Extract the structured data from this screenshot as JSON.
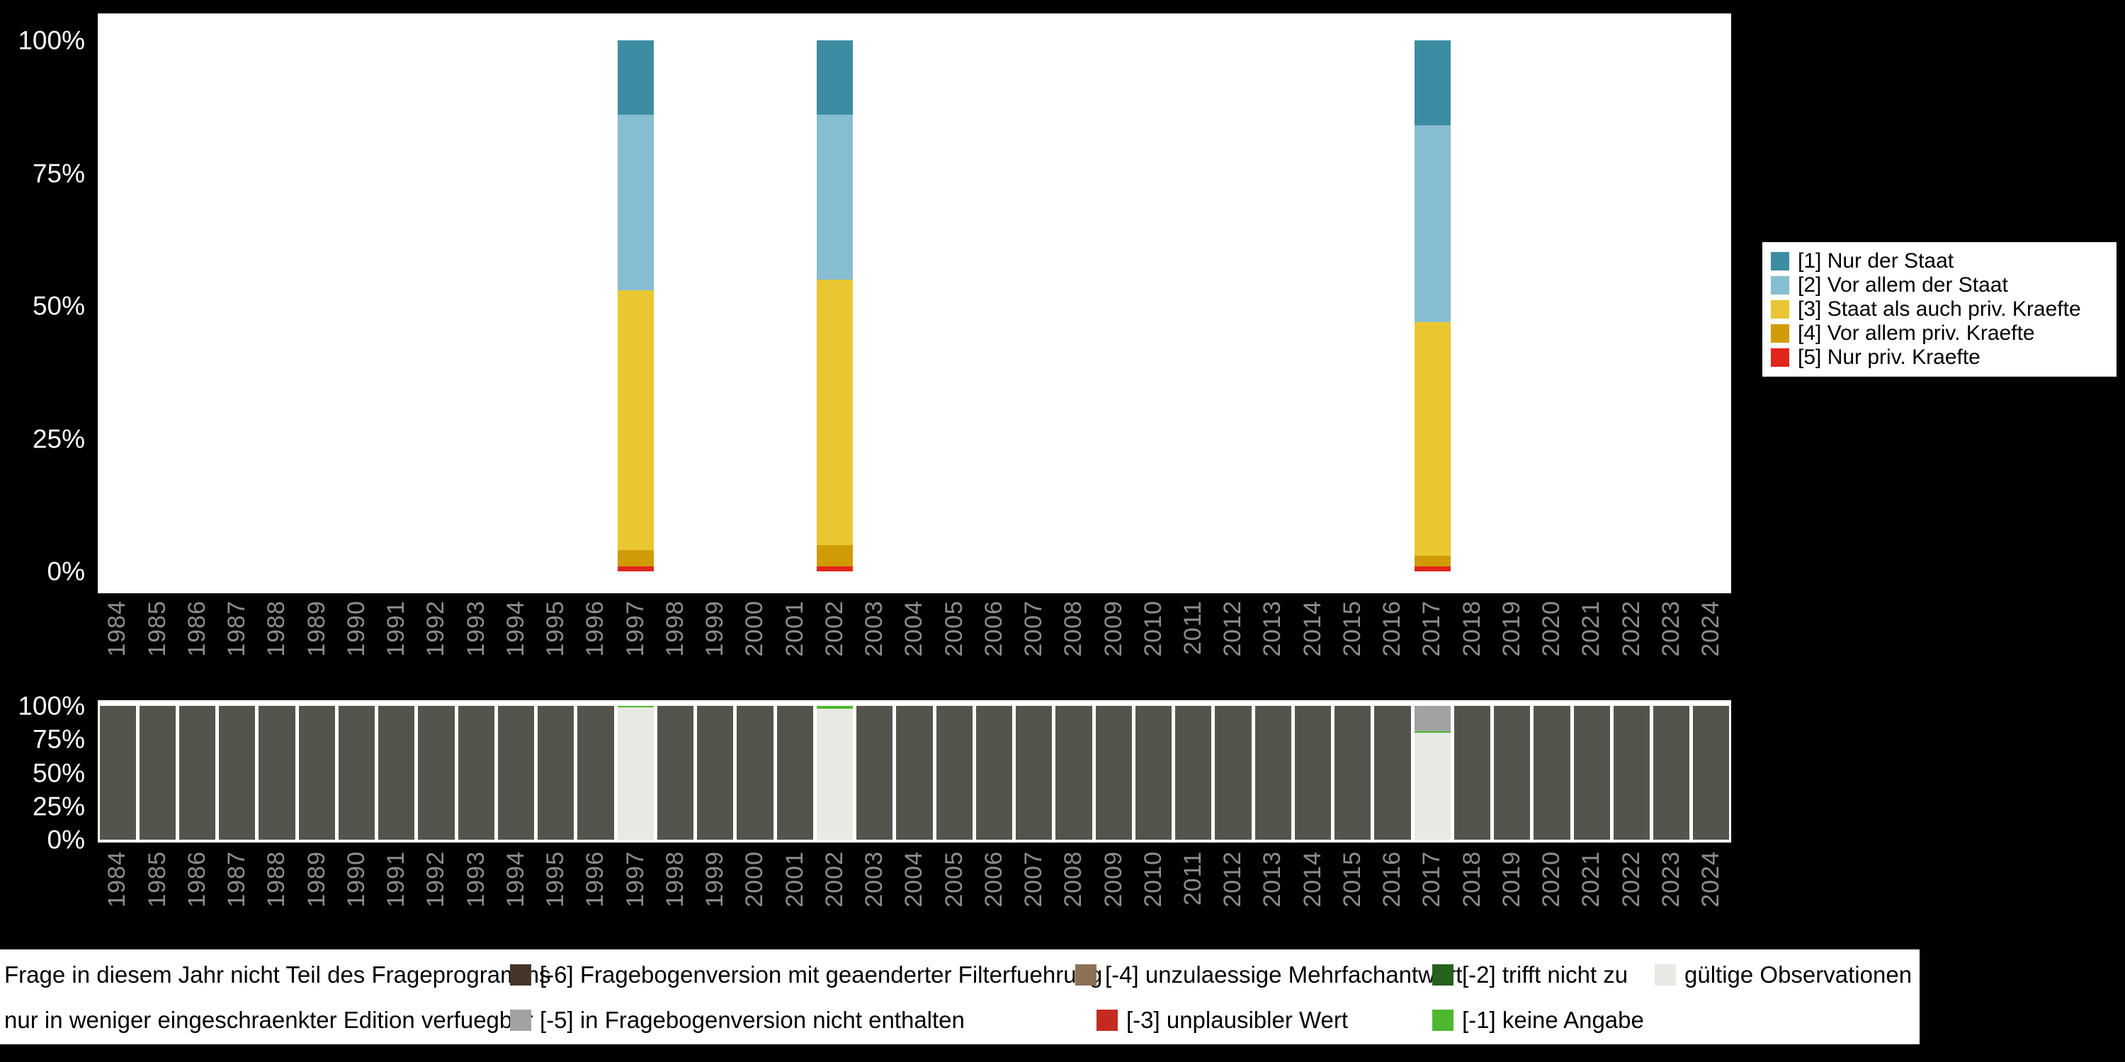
{
  "page": {
    "background": "#000000",
    "panel_background": "#ffffff"
  },
  "chart_data": [
    {
      "type": "bar",
      "stacked": true,
      "orientation": "vertical",
      "title": "",
      "ylim": [
        0,
        100
      ],
      "y_ticks": [
        "100%",
        "75%",
        "50%",
        "25%",
        "0%"
      ],
      "legend_position": "right",
      "grid": false,
      "categories": [
        "1984",
        "1985",
        "1986",
        "1987",
        "1988",
        "1989",
        "1990",
        "1991",
        "1992",
        "1993",
        "1994",
        "1995",
        "1996",
        "1997",
        "1998",
        "1999",
        "2000",
        "2001",
        "2002",
        "2003",
        "2004",
        "2005",
        "2006",
        "2007",
        "2008",
        "2009",
        "2010",
        "2011",
        "2012",
        "2013",
        "2014",
        "2015",
        "2016",
        "2017",
        "2018",
        "2019",
        "2020",
        "2021",
        "2022",
        "2023",
        "2024"
      ],
      "series": [
        {
          "label": "[1] Nur der Staat",
          "color": "#3c8da3",
          "values": {
            "1997": 14,
            "2002": 14,
            "2017": 16
          }
        },
        {
          "label": "[2] Vor allem der Staat",
          "color": "#87bdd0",
          "values": {
            "1997": 33,
            "2002": 31,
            "2017": 37
          }
        },
        {
          "label": "[3] Staat als auch priv. Kraefte",
          "color": "#e9c733",
          "values": {
            "1997": 49,
            "2002": 50,
            "2017": 44
          }
        },
        {
          "label": "[4] Vor allem priv. Kraefte",
          "color": "#d09b06",
          "values": {
            "1997": 3,
            "2002": 4,
            "2017": 2
          }
        },
        {
          "label": "[5] Nur priv. Kraefte",
          "color": "#e1251b",
          "values": {
            "1997": 1,
            "2002": 1,
            "2017": 1
          }
        }
      ]
    },
    {
      "type": "bar",
      "stacked": true,
      "orientation": "vertical",
      "title": "",
      "ylim": [
        0,
        100
      ],
      "y_ticks": [
        "100%",
        "75%",
        "50%",
        "25%",
        "0%"
      ],
      "grid": false,
      "categories": [
        "1984",
        "1985",
        "1986",
        "1987",
        "1988",
        "1989",
        "1990",
        "1991",
        "1992",
        "1993",
        "1994",
        "1995",
        "1996",
        "1997",
        "1998",
        "1999",
        "2000",
        "2001",
        "2002",
        "2003",
        "2004",
        "2005",
        "2006",
        "2007",
        "2008",
        "2009",
        "2010",
        "2011",
        "2012",
        "2013",
        "2014",
        "2015",
        "2016",
        "2017",
        "2018",
        "2019",
        "2020",
        "2021",
        "2022",
        "2023",
        "2024"
      ],
      "default_segment": {
        "label": "Frage in diesem Jahr nicht Teil des Frageprogramms",
        "color": "#55544c",
        "value": 100
      },
      "bars": {
        "1997": [
          {
            "label": "gültige Observationen",
            "color": "#e9e9e4",
            "value": 99
          },
          {
            "label": "[-1] keine Angabe",
            "color": "#4db82e",
            "value": 1
          }
        ],
        "2002": [
          {
            "label": "gültige Observationen",
            "color": "#e9e9e4",
            "value": 98
          },
          {
            "label": "[-1] keine Angabe",
            "color": "#4db82e",
            "value": 2
          }
        ],
        "2017": [
          {
            "label": "gültige Observationen",
            "color": "#e9e9e4",
            "value": 80
          },
          {
            "label": "[-1] keine Angabe",
            "color": "#4db82e",
            "value": 1
          },
          {
            "label": "[-5] in Fragebogenversion nicht enthalten",
            "color": "#a2a2a2",
            "value": 19
          }
        ]
      }
    }
  ],
  "bottom_legend": {
    "rows": [
      {
        "items": [
          {
            "label": "Frage in diesem Jahr nicht Teil des Frageprogramms",
            "swatch": null
          },
          {
            "label": "[-6] Fragebogenversion mit geaenderter Filterfuehrung",
            "swatch": "#46352a"
          },
          {
            "label": "[-4] unzulaessige Mehrfachantwort",
            "swatch": "#8b7256"
          },
          {
            "label": "[-2] trifft nicht zu",
            "swatch": "#25621c"
          },
          {
            "label": "gültige Observationen",
            "swatch": "#e9e9e4"
          }
        ]
      },
      {
        "items": [
          {
            "label": "nur in weniger eingeschraenkter Edition verfuegbar",
            "swatch": null
          },
          {
            "label": "[-5] in Fragebogenversion nicht enthalten",
            "swatch": "#a2a2a2"
          },
          {
            "label": "[-3] unplausibler Wert",
            "swatch": "#c52a20"
          },
          {
            "label": "[-1] keine Angabe",
            "swatch": "#4db82e"
          }
        ]
      }
    ]
  }
}
